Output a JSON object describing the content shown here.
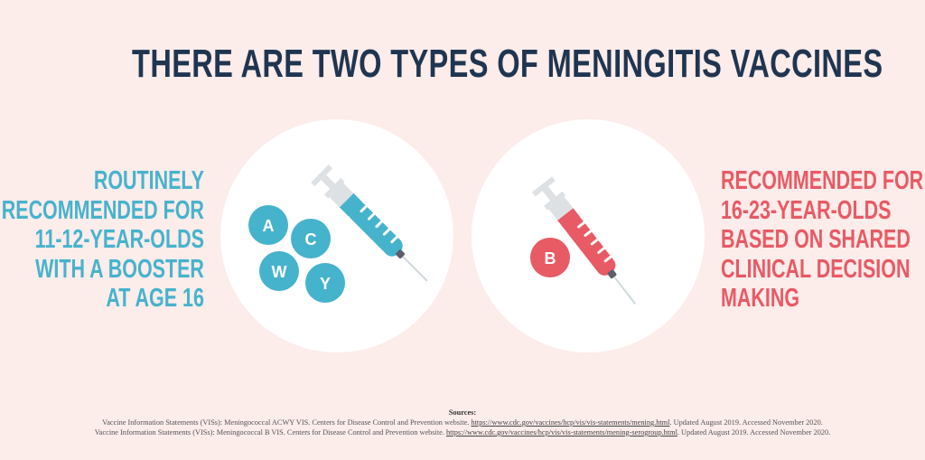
{
  "title": "THERE ARE TWO TYPES OF MENINGITIS VACCINES",
  "left": {
    "lines": [
      "ROUTINELY",
      "RECOMMENDED FOR",
      "11-12-YEAR-OLDS",
      "WITH A BOOSTER",
      "AT AGE 16"
    ],
    "badges": [
      "A",
      "C",
      "W",
      "Y"
    ],
    "color": "#46b3cc"
  },
  "right": {
    "lines": [
      "RECOMMENDED FOR",
      "16-23-YEAR-OLDS",
      "BASED ON SHARED",
      "CLINICAL DECISION",
      "MAKING"
    ],
    "badges": [
      "B"
    ],
    "color": "#e85a64"
  },
  "sources": {
    "heading": "Sources:",
    "items": [
      {
        "pre": "Vaccine Information Statements (VISs): Meningococcal ACWY VIS. Centers for Disease Control and Prevention website. ",
        "link": "https://www.cdc.gov/vaccines/hcp/vis/vis-statements/mening.html",
        "post": ".  Updated August 2019. Accessed November 2020."
      },
      {
        "pre": "Vaccine Information Statements (VISs): Meningococcal B VIS. Centers for Disease Control and Prevention website.  ",
        "link": "https://www.cdc.gov/vaccines/hcp/vis/vis-statements/mening-serogroup.html",
        "post": ". Updated August 2019. Accessed November 2020."
      }
    ]
  }
}
